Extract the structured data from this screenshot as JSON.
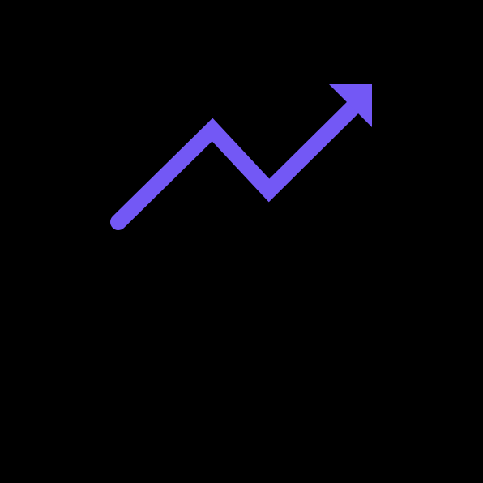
{
  "icon": {
    "name": "trending-up-icon",
    "color": "#7358F5",
    "background": "#000000"
  }
}
